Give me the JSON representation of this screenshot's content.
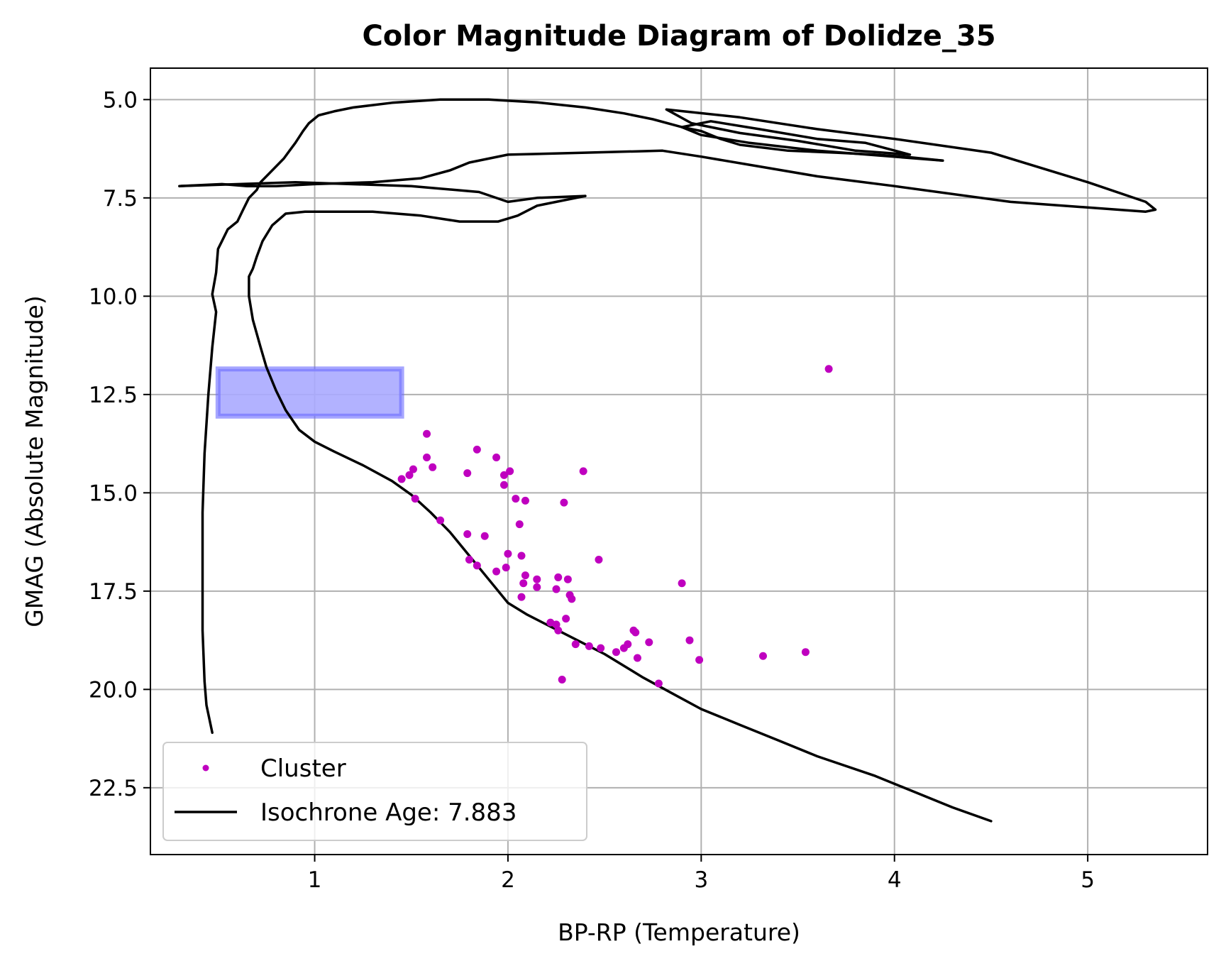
{
  "chart_data": {
    "type": "scatter",
    "title": "Color Magnitude Diagram of Dolidze_35",
    "xlabel": "BP-RP (Temperature)",
    "ylabel": "GMAG (Absolute Magnitude)",
    "xlim": [
      0.15,
      5.62
    ],
    "ylim": [
      24.2,
      4.2
    ],
    "y_inverted": true,
    "grid": true,
    "xticks": [
      1,
      2,
      3,
      4,
      5
    ],
    "xtick_labels": [
      "1",
      "2",
      "3",
      "4",
      "5"
    ],
    "yticks": [
      5.0,
      7.5,
      10.0,
      12.5,
      15.0,
      17.5,
      20.0,
      22.5
    ],
    "ytick_labels": [
      "5.0",
      "7.5",
      "10.0",
      "12.5",
      "15.0",
      "17.5",
      "20.0",
      "22.5"
    ],
    "legend_position": "lower-left",
    "colors": {
      "cluster": "#bf00bf",
      "isochrone": "#000000",
      "box_fill": "#aaaaff",
      "box_edge": "#6b6bff"
    },
    "highlight_box": {
      "x_range": [
        0.5,
        1.45
      ],
      "y_range": [
        11.85,
        13.05
      ]
    },
    "series": [
      {
        "name": "Cluster",
        "kind": "scatter",
        "color": "#bf00bf",
        "points": [
          [
            3.66,
            11.85
          ],
          [
            1.58,
            13.5
          ],
          [
            1.84,
            13.9
          ],
          [
            1.58,
            14.1
          ],
          [
            1.94,
            14.1
          ],
          [
            1.61,
            14.35
          ],
          [
            1.51,
            14.4
          ],
          [
            1.79,
            14.5
          ],
          [
            2.01,
            14.45
          ],
          [
            2.39,
            14.45
          ],
          [
            1.98,
            14.55
          ],
          [
            1.49,
            14.55
          ],
          [
            1.45,
            14.65
          ],
          [
            1.98,
            14.8
          ],
          [
            2.04,
            15.15
          ],
          [
            1.52,
            15.15
          ],
          [
            2.09,
            15.2
          ],
          [
            2.29,
            15.25
          ],
          [
            1.65,
            15.7
          ],
          [
            2.06,
            15.8
          ],
          [
            1.79,
            16.05
          ],
          [
            1.88,
            16.1
          ],
          [
            2.0,
            16.55
          ],
          [
            2.07,
            16.6
          ],
          [
            2.47,
            16.7
          ],
          [
            1.8,
            16.7
          ],
          [
            1.84,
            16.85
          ],
          [
            1.99,
            16.9
          ],
          [
            1.94,
            17.0
          ],
          [
            2.09,
            17.1
          ],
          [
            2.26,
            17.15
          ],
          [
            2.31,
            17.2
          ],
          [
            2.15,
            17.2
          ],
          [
            2.9,
            17.3
          ],
          [
            2.08,
            17.3
          ],
          [
            2.15,
            17.4
          ],
          [
            2.25,
            17.45
          ],
          [
            2.32,
            17.6
          ],
          [
            2.33,
            17.7
          ],
          [
            2.07,
            17.65
          ],
          [
            2.22,
            18.3
          ],
          [
            2.25,
            18.35
          ],
          [
            2.26,
            18.5
          ],
          [
            2.3,
            18.2
          ],
          [
            2.65,
            18.5
          ],
          [
            2.66,
            18.55
          ],
          [
            2.35,
            18.85
          ],
          [
            2.42,
            18.9
          ],
          [
            2.48,
            18.95
          ],
          [
            2.56,
            19.05
          ],
          [
            2.6,
            18.95
          ],
          [
            2.62,
            18.85
          ],
          [
            2.73,
            18.8
          ],
          [
            2.94,
            18.75
          ],
          [
            2.67,
            19.2
          ],
          [
            2.99,
            19.25
          ],
          [
            3.32,
            19.15
          ],
          [
            3.54,
            19.05
          ],
          [
            2.28,
            19.75
          ],
          [
            2.78,
            19.85
          ]
        ]
      },
      {
        "name": "Isochrone Age: 7.883",
        "kind": "line",
        "color": "#000000",
        "segments": [
          [
            [
              0.47,
              21.1
            ],
            [
              0.44,
              20.4
            ],
            [
              0.43,
              19.8
            ],
            [
              0.42,
              18.5
            ],
            [
              0.42,
              17.0
            ],
            [
              0.42,
              15.5
            ],
            [
              0.43,
              14.0
            ],
            [
              0.45,
              12.5
            ],
            [
              0.47,
              11.3
            ],
            [
              0.49,
              10.4
            ],
            [
              0.47,
              9.95
            ],
            [
              0.49,
              9.4
            ],
            [
              0.5,
              8.8
            ],
            [
              0.52,
              8.6
            ],
            [
              0.55,
              8.3
            ],
            [
              0.6,
              8.1
            ],
            [
              0.63,
              7.8
            ],
            [
              0.66,
              7.5
            ],
            [
              0.7,
              7.3
            ],
            [
              0.72,
              7.1
            ],
            [
              0.76,
              6.9
            ],
            [
              0.8,
              6.7
            ],
            [
              0.84,
              6.5
            ],
            [
              0.87,
              6.3
            ],
            [
              0.9,
              6.1
            ],
            [
              0.94,
              5.8
            ],
            [
              0.97,
              5.6
            ],
            [
              1.02,
              5.4
            ],
            [
              1.1,
              5.3
            ],
            [
              1.2,
              5.2
            ],
            [
              1.4,
              5.08
            ],
            [
              1.65,
              5.0
            ],
            [
              1.9,
              5.0
            ],
            [
              2.15,
              5.07
            ],
            [
              2.4,
              5.2
            ],
            [
              2.6,
              5.35
            ],
            [
              2.75,
              5.5
            ],
            [
              2.9,
              5.7
            ],
            [
              3.0,
              5.8
            ],
            [
              3.1,
              6.0
            ],
            [
              3.2,
              6.15
            ],
            [
              3.45,
              6.3
            ],
            [
              3.7,
              6.35
            ],
            [
              3.9,
              6.4
            ],
            [
              4.05,
              6.45
            ],
            [
              4.25,
              6.55
            ]
          ],
          [
            [
              4.25,
              6.55
            ],
            [
              3.6,
              6.3
            ],
            [
              3.25,
              6.1
            ],
            [
              3.0,
              5.9
            ],
            [
              2.9,
              5.7
            ],
            [
              3.05,
              5.55
            ],
            [
              3.3,
              5.75
            ],
            [
              3.6,
              6.0
            ],
            [
              3.85,
              6.1
            ],
            [
              4.08,
              6.4
            ],
            [
              3.8,
              6.3
            ],
            [
              3.5,
              6.05
            ],
            [
              3.2,
              5.85
            ],
            [
              2.95,
              5.6
            ],
            [
              2.82,
              5.25
            ],
            [
              3.2,
              5.45
            ],
            [
              3.6,
              5.75
            ],
            [
              4.0,
              6.0
            ],
            [
              4.5,
              6.35
            ],
            [
              5.0,
              7.1
            ],
            [
              5.3,
              7.6
            ],
            [
              5.35,
              7.8
            ],
            [
              5.3,
              7.85
            ],
            [
              4.6,
              7.6
            ],
            [
              4.0,
              7.2
            ],
            [
              3.6,
              6.95
            ],
            [
              3.3,
              6.7
            ],
            [
              3.0,
              6.45
            ],
            [
              2.8,
              6.3
            ],
            [
              2.4,
              6.35
            ],
            [
              2.0,
              6.4
            ],
            [
              1.8,
              6.6
            ],
            [
              1.7,
              6.8
            ],
            [
              1.55,
              7.0
            ],
            [
              1.3,
              7.1
            ],
            [
              1.0,
              7.15
            ],
            [
              0.8,
              7.2
            ],
            [
              0.65,
              7.2
            ],
            [
              0.52,
              7.15
            ],
            [
              0.3,
              7.2
            ]
          ],
          [
            [
              0.3,
              7.2
            ],
            [
              0.9,
              7.1
            ],
            [
              1.5,
              7.2
            ],
            [
              1.85,
              7.35
            ],
            [
              2.0,
              7.6
            ],
            [
              2.15,
              7.5
            ],
            [
              2.4,
              7.45
            ]
          ],
          [
            [
              2.4,
              7.45
            ],
            [
              2.3,
              7.55
            ],
            [
              2.15,
              7.7
            ],
            [
              2.05,
              7.95
            ],
            [
              1.95,
              8.1
            ],
            [
              1.75,
              8.1
            ],
            [
              1.55,
              7.95
            ],
            [
              1.3,
              7.85
            ],
            [
              1.1,
              7.85
            ],
            [
              0.95,
              7.85
            ],
            [
              0.85,
              7.9
            ],
            [
              0.78,
              8.2
            ],
            [
              0.73,
              8.6
            ],
            [
              0.7,
              9.0
            ],
            [
              0.68,
              9.3
            ],
            [
              0.66,
              9.5
            ],
            [
              0.66,
              10.0
            ],
            [
              0.68,
              10.6
            ],
            [
              0.72,
              11.3
            ],
            [
              0.75,
              11.8
            ],
            [
              0.8,
              12.4
            ],
            [
              0.85,
              12.9
            ],
            [
              0.92,
              13.4
            ],
            [
              1.0,
              13.7
            ],
            [
              1.1,
              13.95
            ],
            [
              1.25,
              14.3
            ],
            [
              1.4,
              14.7
            ],
            [
              1.5,
              15.05
            ],
            [
              1.6,
              15.5
            ],
            [
              1.7,
              16.0
            ],
            [
              1.8,
              16.6
            ],
            [
              1.9,
              17.2
            ],
            [
              2.0,
              17.8
            ],
            [
              2.1,
              18.1
            ],
            [
              2.3,
              18.6
            ],
            [
              2.5,
              19.1
            ],
            [
              2.7,
              19.7
            ],
            [
              2.85,
              20.1
            ],
            [
              3.0,
              20.5
            ],
            [
              3.2,
              20.9
            ],
            [
              3.4,
              21.3
            ],
            [
              3.6,
              21.7
            ],
            [
              3.9,
              22.2
            ],
            [
              4.1,
              22.6
            ],
            [
              4.3,
              23.0
            ],
            [
              4.5,
              23.35
            ]
          ]
        ]
      }
    ]
  }
}
